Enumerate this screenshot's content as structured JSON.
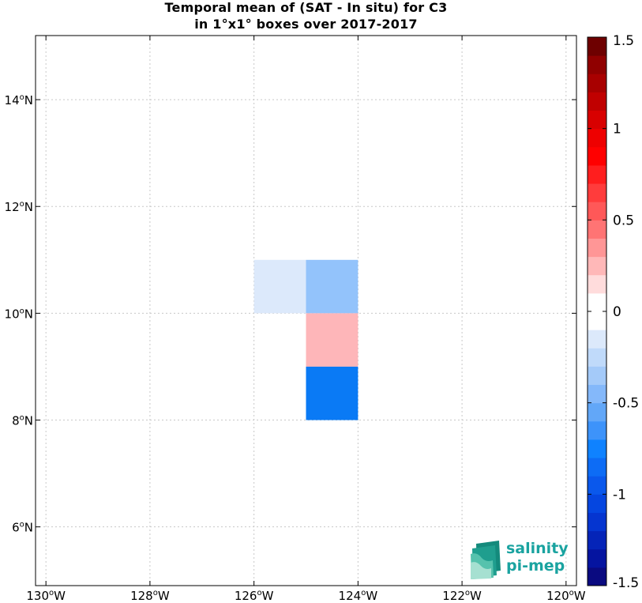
{
  "chart_data": {
    "type": "heatmap",
    "title_lines": [
      "Temporal mean of (SAT - In situ) for C3",
      "in 1°x1° boxes over 2017-2017"
    ],
    "xlim": [
      -130.2,
      -119.8
    ],
    "ylim": [
      4.9,
      15.2
    ],
    "x_ticks": [
      {
        "value": -130,
        "label": "130",
        "suffix": "W"
      },
      {
        "value": -128,
        "label": "128",
        "suffix": "W"
      },
      {
        "value": -126,
        "label": "126",
        "suffix": "W"
      },
      {
        "value": -124,
        "label": "124",
        "suffix": "W"
      },
      {
        "value": -122,
        "label": "122",
        "suffix": "W"
      },
      {
        "value": -120,
        "label": "120",
        "suffix": "W"
      }
    ],
    "y_ticks": [
      {
        "value": 6,
        "label": "6",
        "suffix": "N"
      },
      {
        "value": 8,
        "label": "8",
        "suffix": "N"
      },
      {
        "value": 10,
        "label": "10",
        "suffix": "N"
      },
      {
        "value": 12,
        "label": "12",
        "suffix": "N"
      },
      {
        "value": 14,
        "label": "14",
        "suffix": "N"
      }
    ],
    "grid": true,
    "cells": [
      {
        "lon": [
          -126,
          -125
        ],
        "lat": [
          10,
          11
        ],
        "value": -0.1
      },
      {
        "lon": [
          -125,
          -124
        ],
        "lat": [
          10,
          11
        ],
        "value": -0.4
      },
      {
        "lon": [
          -125,
          -124
        ],
        "lat": [
          9,
          10
        ],
        "value": 0.25
      },
      {
        "lon": [
          -125,
          -124
        ],
        "lat": [
          8,
          9
        ],
        "value": -0.8
      }
    ],
    "colorbar": {
      "range": [
        -1.5,
        1.5
      ],
      "tick_values": [
        1.5,
        1,
        0.5,
        0,
        -0.5,
        -1,
        -1.5
      ],
      "tick_labels": [
        "1.5",
        "1",
        "0.5",
        "0",
        "-0.5",
        "-1",
        "-1.5"
      ],
      "colors": [
        "#0a0a80",
        "#0514a0",
        "#0524b8",
        "#0535d0",
        "#0546e0",
        "#0a58ec",
        "#0d6cf5",
        "#0f82ff",
        "#3d93fa",
        "#62a7f8",
        "#84b8fa",
        "#a4caf9",
        "#c0dafa",
        "#dce9fb",
        "#ffffff",
        "#ffffff",
        "#ffdcdc",
        "#ffb8b8",
        "#ff9696",
        "#ff7474",
        "#ff5858",
        "#ff3c3c",
        "#ff1e1e",
        "#ff0000",
        "#ee0000",
        "#d80000",
        "#c00000",
        "#a80000",
        "#900000",
        "#6e0000"
      ]
    },
    "cell_colors": [
      "#dce9fb",
      "#93c3fb",
      "#feb6b9",
      "#0a7af5"
    ]
  },
  "logo": {
    "line1": "salinity",
    "line2": "pi-mep",
    "color": "#1aa3a0"
  }
}
